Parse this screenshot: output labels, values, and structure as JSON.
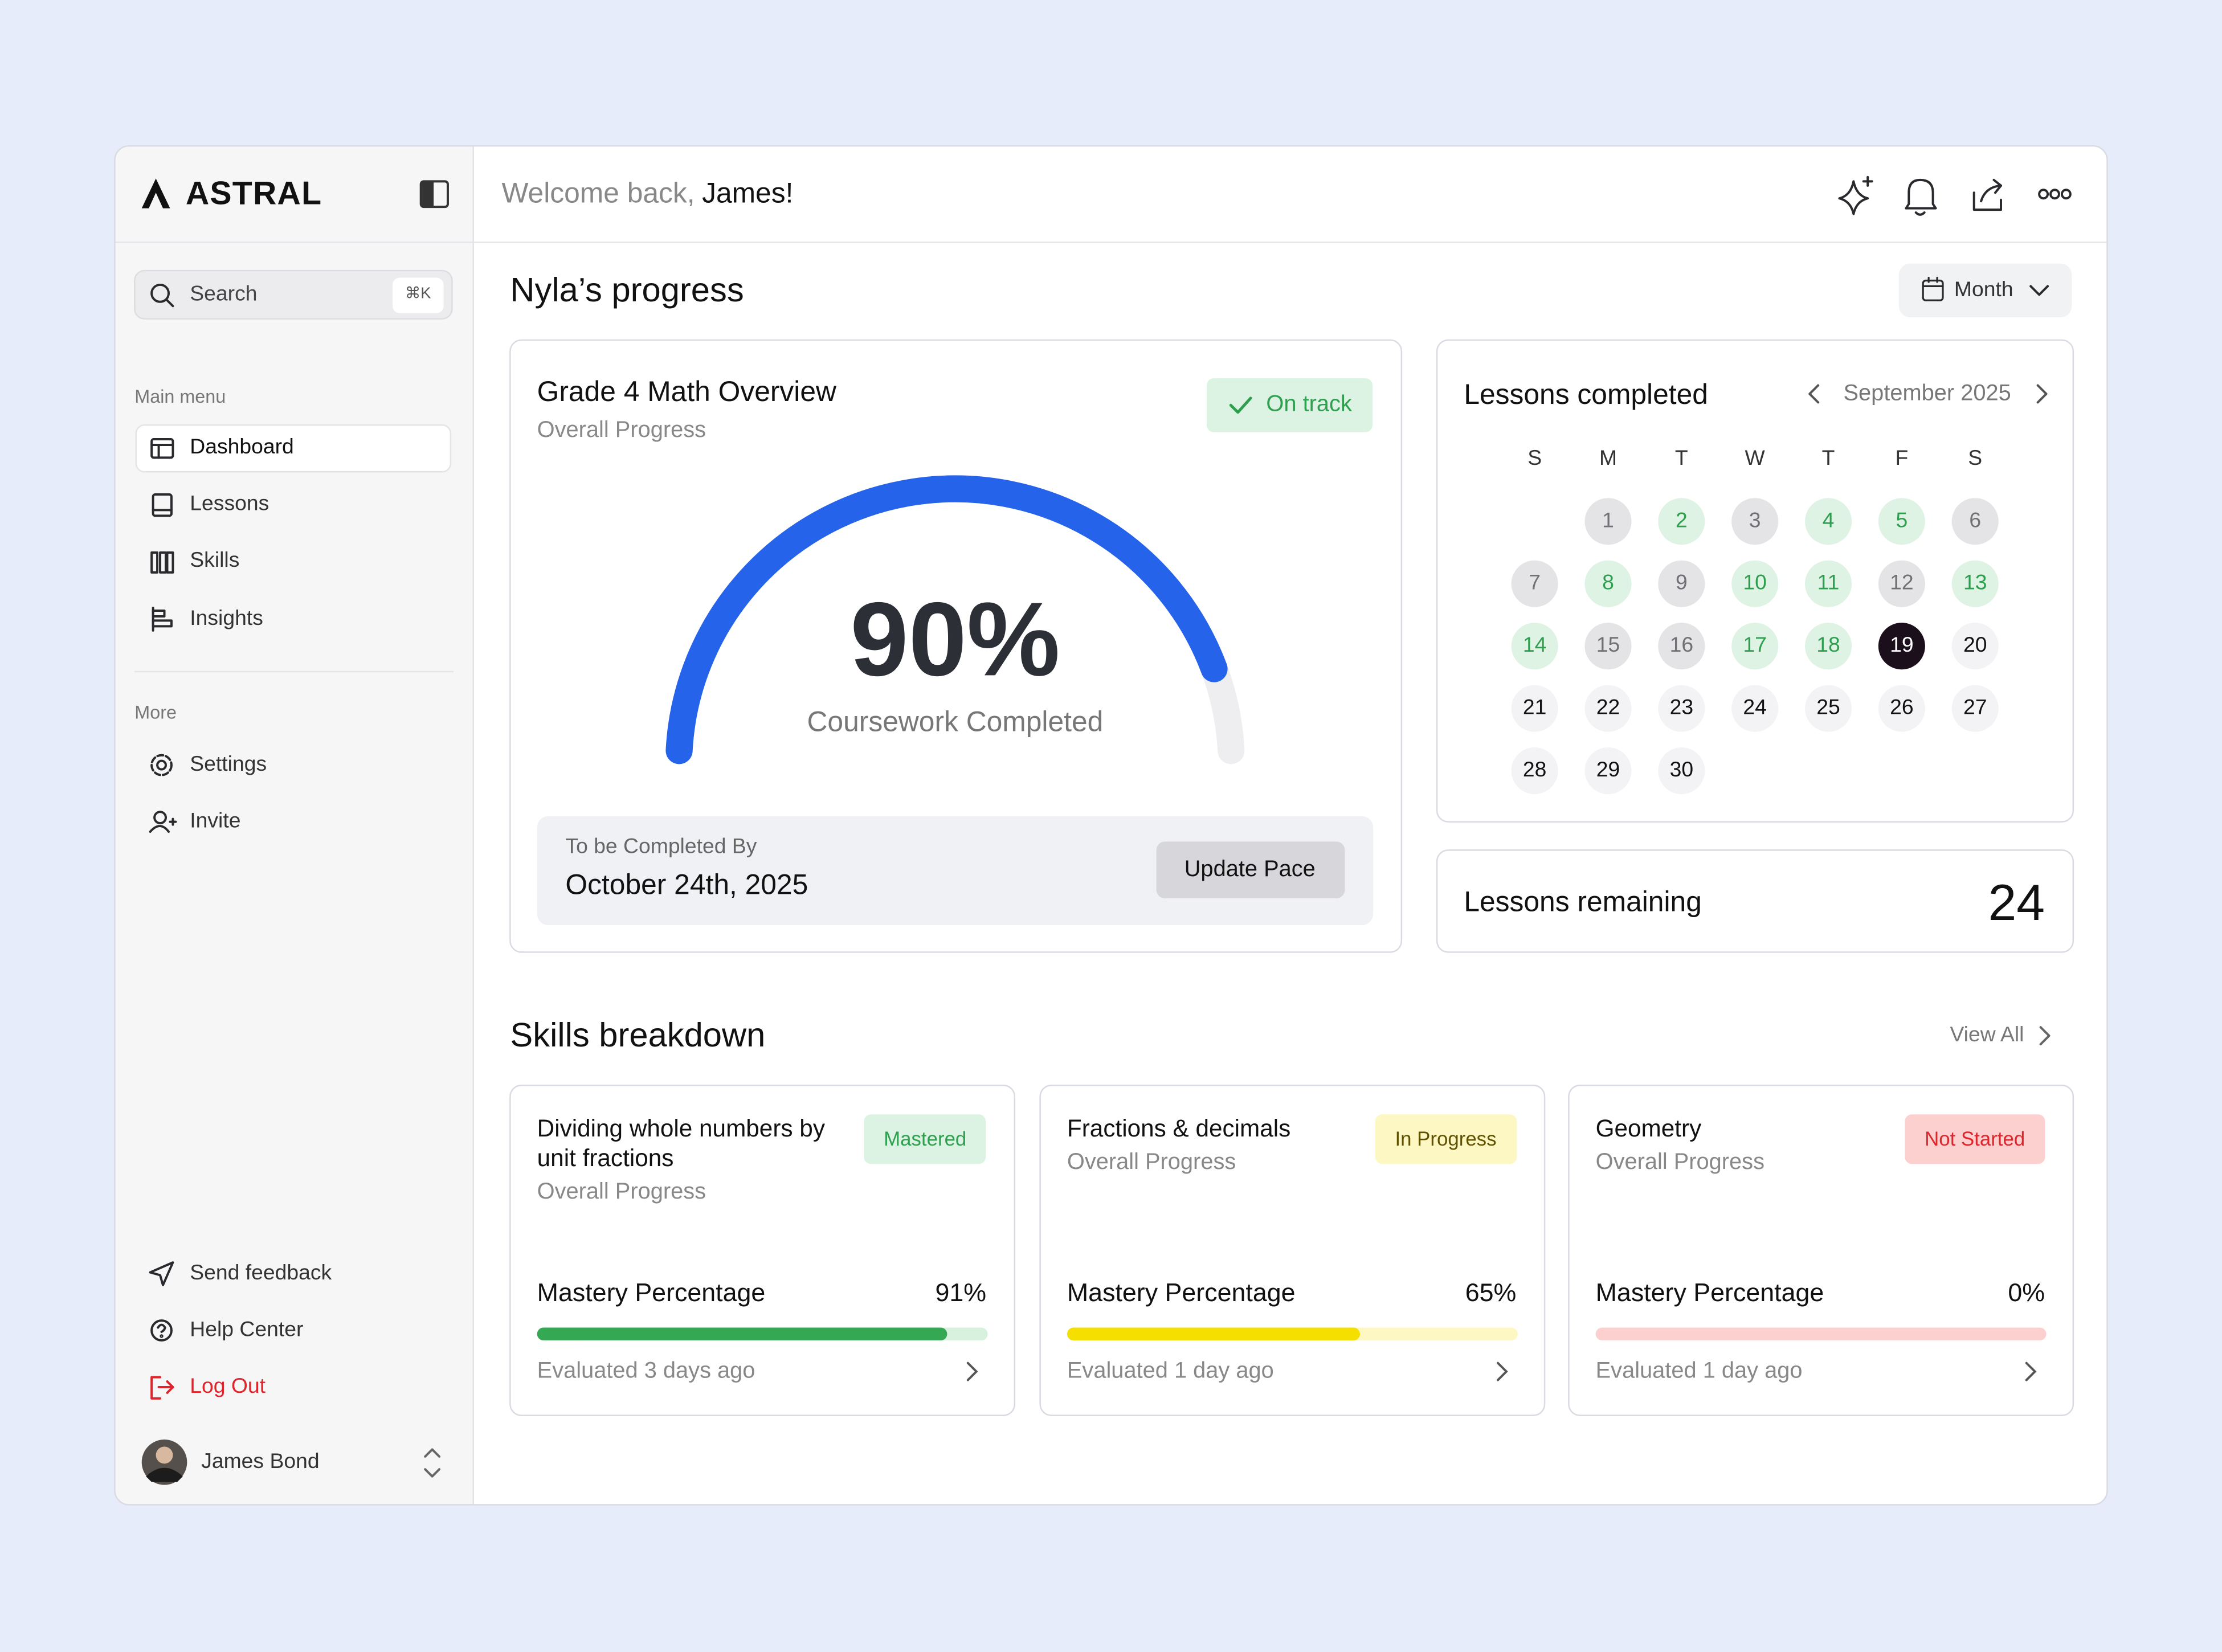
{
  "sidebar": {
    "brand": "ASTRAL",
    "search": {
      "placeholder": "Search",
      "shortcut": "⌘K"
    },
    "main_menu": {
      "title": "Main menu",
      "items": [
        "Dashboard",
        "Lessons",
        "Skills",
        "Insights"
      ]
    },
    "more": {
      "title": "More",
      "items": [
        "Settings",
        "Invite"
      ]
    },
    "footer": [
      "Send feedback",
      "Help Center",
      "Log Out"
    ],
    "user": "James Bond"
  },
  "header": {
    "greeting": "Welcome back,",
    "name": "James!"
  },
  "progress": {
    "title": "Nyla’s progress",
    "period": "Month",
    "overview": {
      "title": "Grade 4 Math Overview",
      "subtitle": "Overall Progress",
      "status": "On track",
      "gauge": {
        "value": 90,
        "value_label": "90%",
        "caption": "Coursework Completed",
        "color": "#2563eb"
      },
      "due_label": "To be Completed By",
      "due_date": "October 24th, 2025",
      "button": "Update Pace"
    },
    "calendar": {
      "title": "Lessons completed",
      "month": "September 2025",
      "weekdays": [
        "S",
        "M",
        "T",
        "W",
        "T",
        "F",
        "S"
      ],
      "days": [
        1,
        2,
        3,
        4,
        5,
        6,
        7,
        8,
        9,
        10,
        11,
        12,
        13,
        14,
        15,
        16,
        17,
        18,
        19,
        20,
        21,
        22,
        23,
        24,
        25,
        26,
        27,
        28,
        29,
        30
      ],
      "day_colors": [
        "#e4e4e6",
        "#def3e4",
        "#e4e4e6",
        "#def3e4",
        "#def3e4",
        "#e4e4e6",
        "#e4e4e6",
        "#def3e4",
        "#e4e4e6",
        "#def3e4",
        "#def3e4",
        "#e4e4e6",
        "#def3e4",
        "#def3e4",
        "#e4e4e6",
        "#e4e4e6",
        "#def3e4",
        "#def3e4",
        "#1a0f1a",
        "#f3f3f5",
        "#f3f3f5",
        "#f3f3f5",
        "#f3f3f5",
        "#f3f3f5",
        "#f3f3f5",
        "#f3f3f5",
        "#f3f3f5",
        "#f3f3f5",
        "#f3f3f5",
        "#f3f3f5"
      ]
    },
    "remaining": {
      "label": "Lessons remaining",
      "value": 24
    }
  },
  "skills": {
    "title": "Skills breakdown",
    "view_all": "View All",
    "cards": [
      {
        "title": "Dividing whole numbers by unit fractions",
        "subtitle": "Overall Progress",
        "status": "Mastered",
        "metric": "Mastery Percentage",
        "value": 91,
        "value_label": "91%",
        "evaluated": "Evaluated 3 days ago",
        "color": "#34a853",
        "track": "#d8f0de",
        "badge_bg": "#dcf2e3",
        "badge_fg": "#2e9e4f"
      },
      {
        "title": "Fractions & decimals",
        "subtitle": "Overall Progress",
        "status": "In Progress",
        "metric": "Mastery Percentage",
        "value": 65,
        "value_label": "65%",
        "evaluated": "Evaluated 1 day ago",
        "color": "#f5df00",
        "track": "#fdf7c3",
        "badge_bg": "#fdf7c3",
        "badge_fg": "#5f5100"
      },
      {
        "title": "Geometry",
        "subtitle": "Overall Progress",
        "status": "Not Started",
        "metric": "Mastery Percentage",
        "value": 0,
        "value_label": "0%",
        "evaluated": "Evaluated 1 day ago",
        "color": "#ef4444",
        "track": "#fdd0d0",
        "badge_bg": "#fdd0d0",
        "badge_fg": "#e0242b"
      }
    ]
  }
}
